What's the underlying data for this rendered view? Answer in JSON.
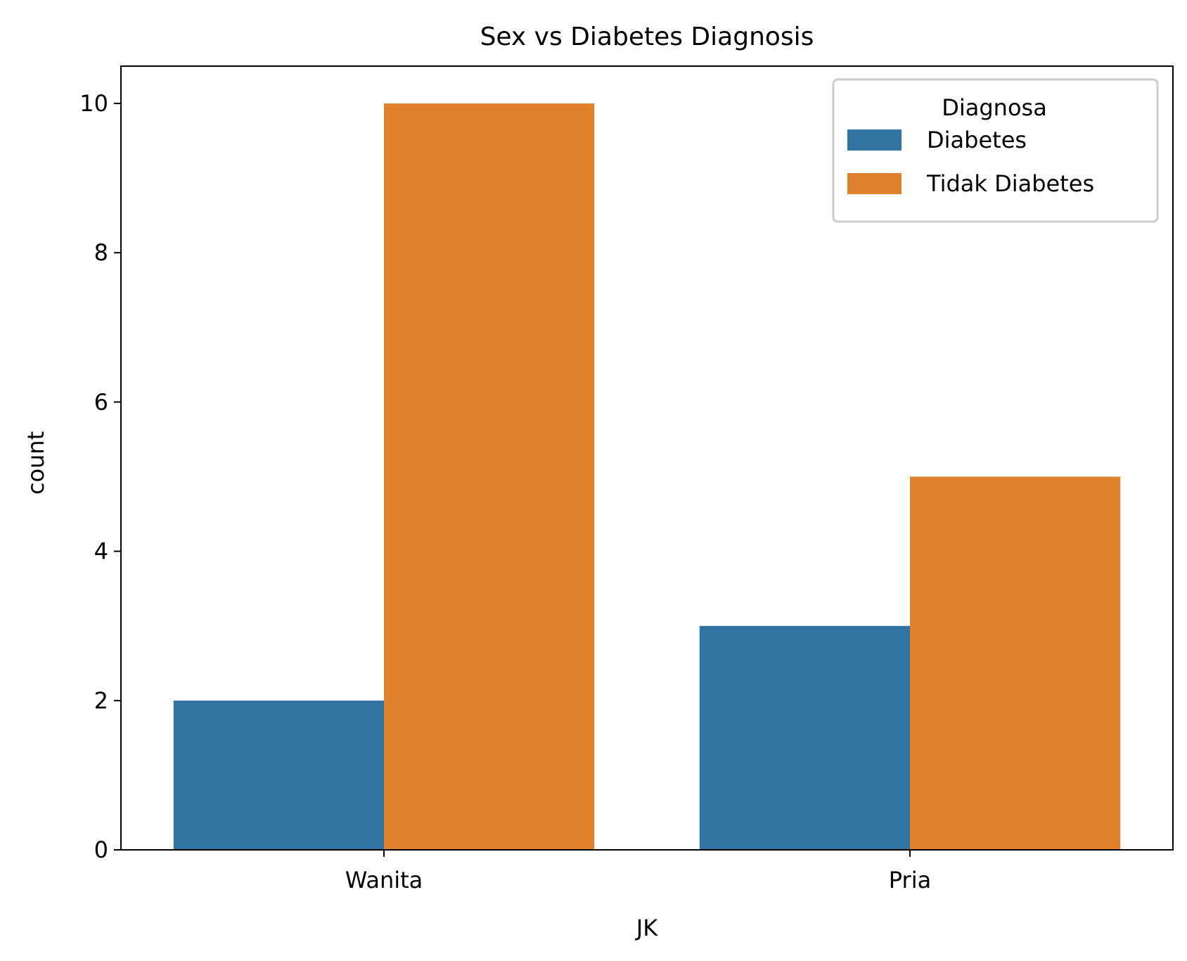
{
  "chart_data": {
    "type": "bar",
    "title": "Sex vs Diabetes Diagnosis",
    "xlabel": "JK",
    "ylabel": "count",
    "categories": [
      "Wanita",
      "Pria"
    ],
    "series": [
      {
        "name": "Diabetes",
        "values": [
          2,
          3
        ],
        "color": "#3274a1"
      },
      {
        "name": "Tidak Diabetes",
        "values": [
          10,
          5
        ],
        "color": "#e1812c"
      }
    ],
    "ylim": [
      0,
      10.5
    ],
    "yticks": [
      0,
      2,
      4,
      6,
      8,
      10
    ],
    "yticklabels": [
      "0",
      "2",
      "4",
      "6",
      "8",
      "10"
    ],
    "legend": {
      "title": "Diagnosa",
      "placement": "top-right"
    },
    "grid": false
  }
}
